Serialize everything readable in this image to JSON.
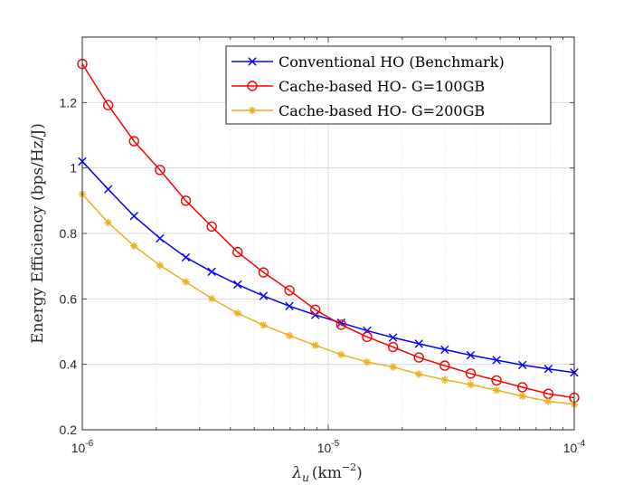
{
  "chart_data": {
    "type": "line",
    "xscale": "log",
    "x": [
      1e-06,
      1.2742749857e-06,
      1.6237767392e-06,
      2.0691380811e-06,
      2.6366508987e-06,
      3.3598182863e-06,
      4.2813323987e-06,
      5.4555947812e-06,
      6.9519279618e-06,
      8.8586679041e-06,
      1.1288378917e-05,
      1.4384498883e-05,
      1.8329807108e-05,
      2.3357214691e-05,
      2.9763514416e-05,
      3.7926901907e-05,
      4.8329302386e-05,
      6.1584821107e-05,
      7.8475997035e-05,
      0.0001
    ],
    "series": [
      {
        "name": "Conventional HO (Benchmark)",
        "color": "#0000ff",
        "marker": "x",
        "values": [
          1.02,
          0.935,
          0.853,
          0.785,
          0.727,
          0.683,
          0.644,
          0.609,
          0.578,
          0.551,
          0.527,
          0.503,
          0.482,
          0.463,
          0.445,
          0.428,
          0.413,
          0.398,
          0.386,
          0.375
        ]
      },
      {
        "name": "Cache-based HO- G=100GB",
        "color": "#ff0000",
        "marker": "o",
        "values": [
          1.318,
          1.192,
          1.082,
          0.994,
          0.9,
          0.821,
          0.743,
          0.681,
          0.626,
          0.567,
          0.521,
          0.484,
          0.453,
          0.421,
          0.396,
          0.372,
          0.351,
          0.33,
          0.31,
          0.298
        ]
      },
      {
        "name": "Cache-based HO- G=200GB",
        "color": "#edb120",
        "marker": "*",
        "values": [
          0.92,
          0.833,
          0.762,
          0.702,
          0.652,
          0.601,
          0.556,
          0.52,
          0.488,
          0.458,
          0.43,
          0.407,
          0.392,
          0.37,
          0.353,
          0.338,
          0.321,
          0.303,
          0.287,
          0.278
        ]
      }
    ],
    "title": "",
    "xlabel": "λu (km−2)",
    "ylabel": "Energy Efficiency (bps/Hz/J)",
    "xlim": [
      1e-06,
      0.0001
    ],
    "ylim": [
      0.2,
      1.4
    ],
    "yticks": [
      "0.2",
      "0.4",
      "0.6",
      "0.8",
      "1",
      "1.2"
    ],
    "xticks": [
      {
        "base": "10",
        "exp": "-6"
      },
      {
        "base": "10",
        "exp": "-5"
      },
      {
        "base": "10",
        "exp": "-4"
      }
    ],
    "grid": true,
    "legend_position": "top-right"
  }
}
